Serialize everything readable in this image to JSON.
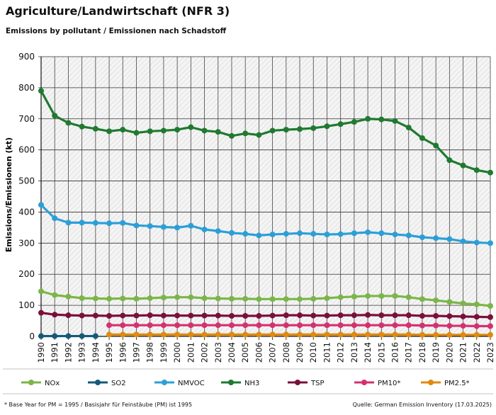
{
  "header": {
    "title": "Agriculture/Landwirtschaft (NFR 3)",
    "subtitle": "Emissions by pollutant / Emissionen nach Schadstoff"
  },
  "footer": {
    "footnote": "* Base Year for PM = 1995 / Basisjahr für Feinstäube (PM) ist 1995",
    "source": "Quelle: German Emission Inventory (17.03.2025)"
  },
  "chart_data": {
    "type": "line",
    "title": "Agriculture/Landwirtschaft (NFR 3)",
    "subtitle": "Emissions by pollutant / Emissionen nach Schadstoff",
    "xlabel": "",
    "ylabel": "Emissions/Emissionen (kt)",
    "ylim": [
      0,
      900
    ],
    "yticks": [
      0,
      100,
      200,
      300,
      400,
      500,
      600,
      700,
      800,
      900
    ],
    "grid": "horizontal",
    "legend": "bottom",
    "x": [
      1990,
      1991,
      1992,
      1993,
      1994,
      1995,
      1996,
      1997,
      1998,
      1999,
      2000,
      2001,
      2002,
      2003,
      2004,
      2005,
      2006,
      2007,
      2008,
      2009,
      2010,
      2011,
      2012,
      2013,
      2014,
      2015,
      2016,
      2017,
      2018,
      2019,
      2020,
      2021,
      2022,
      2023
    ],
    "series": [
      {
        "name": "NOx",
        "color": "#7ab648",
        "values": [
          145,
          133,
          128,
          123,
          122,
          121,
          122,
          121,
          123,
          125,
          126,
          126,
          123,
          122,
          121,
          121,
          120,
          120,
          120,
          120,
          121,
          123,
          126,
          128,
          130,
          130,
          130,
          126,
          120,
          116,
          111,
          106,
          103,
          98
        ]
      },
      {
        "name": "SO2",
        "color": "#145a7a",
        "values": [
          1,
          1,
          1,
          1,
          1,
          null,
          null,
          null,
          null,
          null,
          null,
          null,
          null,
          null,
          null,
          null,
          null,
          null,
          null,
          null,
          null,
          null,
          null,
          null,
          null,
          null,
          null,
          null,
          null,
          null,
          null,
          null,
          null,
          null
        ]
      },
      {
        "name": "NMVOC",
        "color": "#2b9fd8",
        "values": [
          423,
          380,
          366,
          366,
          365,
          364,
          365,
          357,
          355,
          352,
          350,
          356,
          344,
          339,
          333,
          330,
          325,
          328,
          330,
          332,
          330,
          328,
          329,
          332,
          335,
          332,
          328,
          325,
          319,
          316,
          313,
          306,
          302,
          300
        ]
      },
      {
        "name": "NH3",
        "color": "#1f7a30",
        "values": [
          790,
          710,
          687,
          675,
          668,
          660,
          665,
          655,
          660,
          662,
          665,
          673,
          662,
          658,
          645,
          653,
          648,
          662,
          665,
          667,
          670,
          676,
          683,
          690,
          700,
          698,
          693,
          672,
          638,
          614,
          567,
          550,
          535,
          527
        ]
      },
      {
        "name": "TSP",
        "color": "#7a0f3a",
        "values": [
          76,
          70,
          68,
          67,
          67,
          66,
          67,
          67,
          68,
          67,
          67,
          67,
          67,
          67,
          66,
          66,
          66,
          67,
          68,
          68,
          67,
          67,
          68,
          68,
          69,
          68,
          68,
          68,
          66,
          66,
          65,
          64,
          63,
          62
        ]
      },
      {
        "name": "PM10*",
        "color": "#d6306f",
        "values": [
          null,
          null,
          null,
          null,
          null,
          36,
          36,
          36,
          36,
          36,
          36,
          36,
          36,
          36,
          36,
          36,
          36,
          36,
          36,
          36,
          36,
          36,
          36,
          36,
          36,
          36,
          36,
          36,
          35,
          35,
          34,
          34,
          33,
          33
        ]
      },
      {
        "name": "PM2.5*",
        "color": "#e08a0e",
        "values": [
          null,
          null,
          null,
          null,
          null,
          6,
          6,
          6,
          6,
          6,
          6,
          6,
          6,
          6,
          6,
          6,
          6,
          6,
          6,
          6,
          6,
          6,
          6,
          6,
          6,
          6,
          6,
          6,
          5,
          5,
          5,
          5,
          5,
          5
        ]
      }
    ]
  }
}
